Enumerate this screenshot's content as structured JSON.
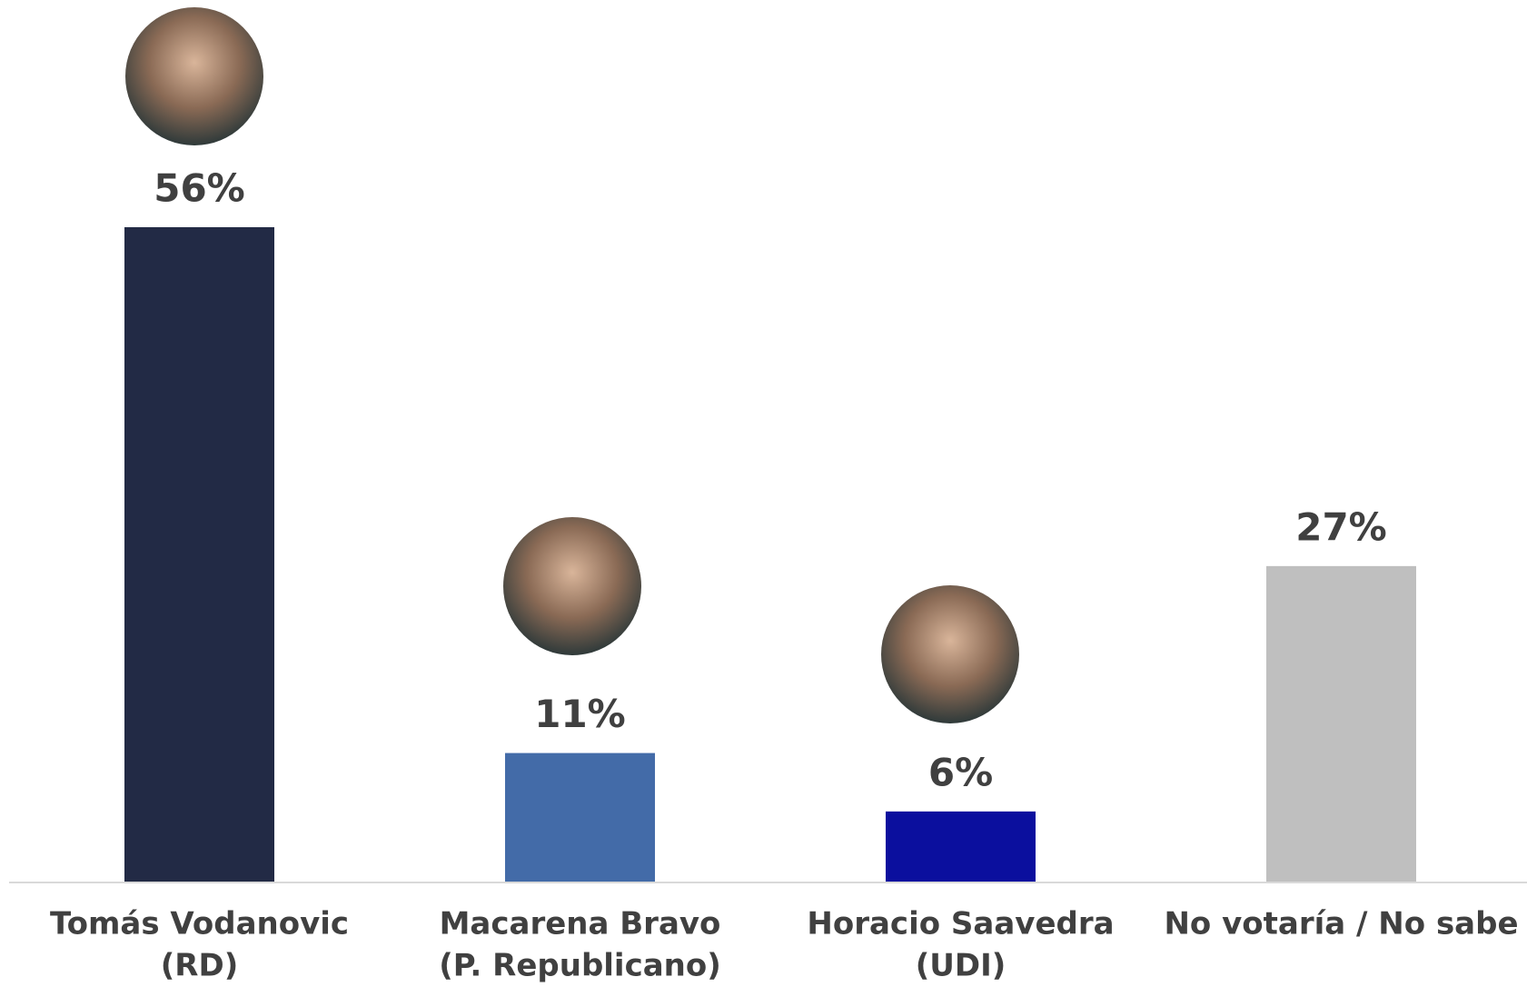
{
  "chart_data": {
    "type": "bar",
    "categories": [
      [
        "Tomás Vodanovic",
        "(RD)"
      ],
      [
        "Macarena Bravo",
        "(P. Republicano)"
      ],
      [
        "Horacio Saavedra",
        "(UDI)"
      ],
      [
        "No votaría / No sabe"
      ]
    ],
    "values": [
      56,
      11,
      6,
      27
    ],
    "value_labels": [
      "56%",
      "11%",
      "6%",
      "27%"
    ],
    "colors": [
      "#222a45",
      "#436ba8",
      "#0b0f9e",
      "#bfbfbf"
    ],
    "ylim": [
      0,
      56
    ]
  }
}
